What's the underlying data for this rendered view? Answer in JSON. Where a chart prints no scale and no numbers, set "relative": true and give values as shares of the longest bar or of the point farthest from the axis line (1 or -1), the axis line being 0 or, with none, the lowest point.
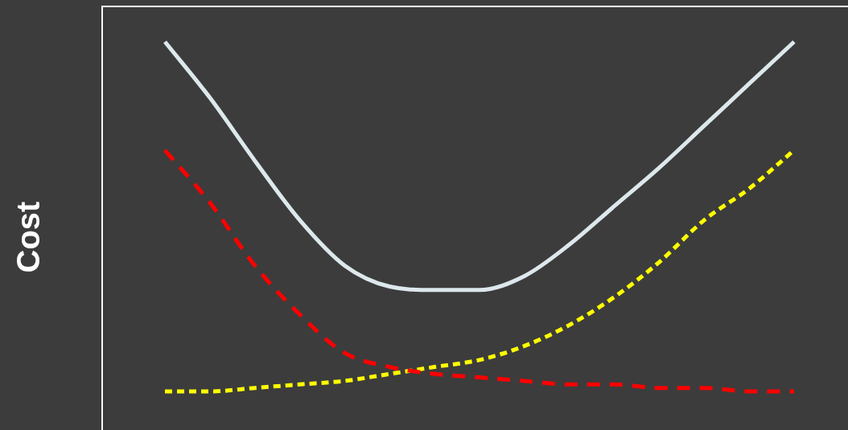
{
  "chart_data": {
    "type": "line",
    "ylabel": "Cost",
    "relative": true,
    "marker": "none",
    "categories": [
      null,
      null,
      null,
      null,
      null,
      null,
      null,
      null,
      null,
      null,
      null,
      null,
      null,
      null,
      null
    ],
    "series": [
      {
        "color": "#dde8ec",
        "line_style": "solid",
        "values": [
          1,
          0.84,
          0.66,
          0.49,
          0.36,
          0.3,
          0.29,
          0.29,
          0.33,
          0.42,
          0.53,
          0.64,
          0.76,
          0.88,
          1
        ]
      },
      {
        "color": "#ff0000",
        "line_style": "dashed",
        "values": [
          0.69,
          0.54,
          0.36,
          0.22,
          0.11,
          0.07,
          0.05,
          0.04,
          0.03,
          0.02,
          0.02,
          0.01,
          0.01,
          0,
          0
        ]
      },
      {
        "color": "#ffff00",
        "line_style": "dotted",
        "values": [
          0,
          0,
          0.01,
          0.02,
          0.03,
          0.05,
          0.07,
          0.09,
          0.13,
          0.19,
          0.27,
          0.37,
          0.49,
          0.58,
          0.69
        ]
      }
    ]
  }
}
